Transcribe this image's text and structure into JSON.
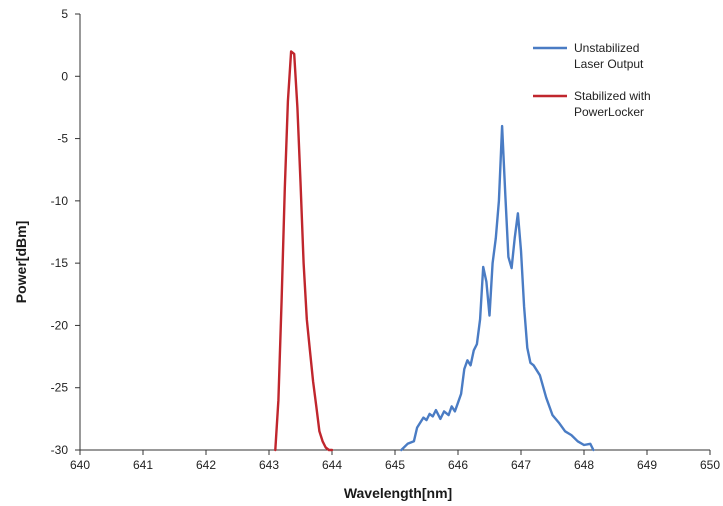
{
  "chart_data": {
    "type": "line",
    "xlabel": "Wavelength[nm]",
    "ylabel": "Power[dBm]",
    "xlim": [
      640,
      650
    ],
    "ylim": [
      -30,
      5
    ],
    "xticks": [
      "640",
      "641",
      "642",
      "643",
      "644",
      "645",
      "646",
      "647",
      "648",
      "649",
      "650"
    ],
    "yticks": [
      "5",
      "0",
      "-5",
      "-10",
      "-15",
      "-20",
      "-25",
      "-30"
    ],
    "grid": false,
    "legend_position": "top-right",
    "series": [
      {
        "name_lines": [
          "Unstabilized",
          "Laser Output"
        ],
        "color": "#4a7cc4",
        "x": [
          645.1,
          645.2,
          645.3,
          645.35,
          645.45,
          645.5,
          645.55,
          645.6,
          645.65,
          645.72,
          645.78,
          645.85,
          645.9,
          645.95,
          646.0,
          646.05,
          646.1,
          646.15,
          646.2,
          646.25,
          646.3,
          646.35,
          646.4,
          646.45,
          646.5,
          646.55,
          646.6,
          646.65,
          646.7,
          646.75,
          646.8,
          646.85,
          646.9,
          646.95,
          647.0,
          647.05,
          647.1,
          647.15,
          647.2,
          647.3,
          647.4,
          647.5,
          647.6,
          647.7,
          647.8,
          647.9,
          648.0,
          648.1,
          648.15
        ],
        "y": [
          -30,
          -29.5,
          -29.3,
          -28.2,
          -27.4,
          -27.6,
          -27.1,
          -27.3,
          -26.8,
          -27.5,
          -26.9,
          -27.2,
          -26.5,
          -26.9,
          -26.2,
          -25.5,
          -23.5,
          -22.8,
          -23.2,
          -22.0,
          -21.5,
          -19.5,
          -15.3,
          -16.5,
          -19.2,
          -15.0,
          -13.0,
          -10.0,
          -4.0,
          -9.5,
          -14.5,
          -15.4,
          -13.0,
          -11.0,
          -14.0,
          -18.5,
          -21.8,
          -23.0,
          -23.2,
          -24.0,
          -25.8,
          -27.2,
          -27.8,
          -28.5,
          -28.8,
          -29.3,
          -29.6,
          -29.5,
          -30
        ]
      },
      {
        "name_lines": [
          "Stabilized with",
          "PowerLocker"
        ],
        "color": "#c0262d",
        "x": [
          643.1,
          643.15,
          643.2,
          643.25,
          643.3,
          643.35,
          643.4,
          643.45,
          643.5,
          643.55,
          643.6,
          643.65,
          643.7,
          643.75,
          643.8,
          643.85,
          643.9,
          643.95,
          644.0
        ],
        "y": [
          -30,
          -26,
          -18,
          -9,
          -2,
          2.0,
          1.8,
          -2.5,
          -8.5,
          -15,
          -19.5,
          -22,
          -24.5,
          -26.5,
          -28.5,
          -29.3,
          -29.8,
          -30,
          -30
        ]
      }
    ]
  }
}
